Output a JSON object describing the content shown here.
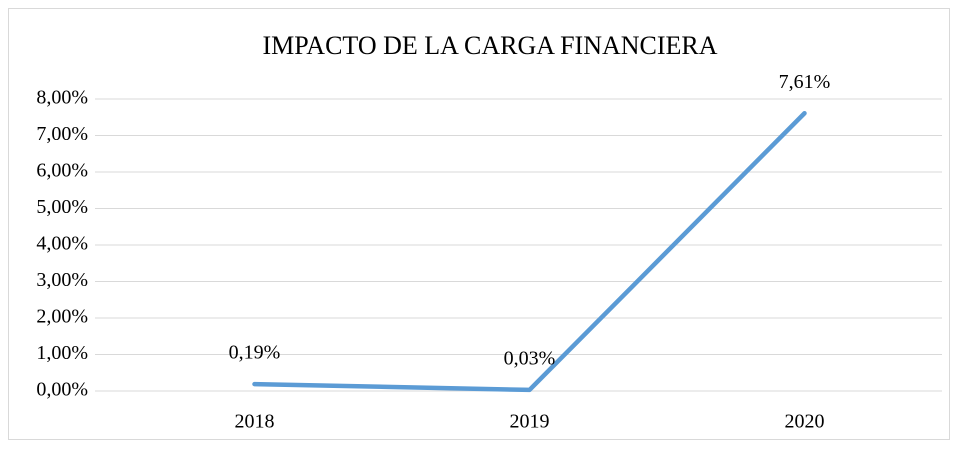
{
  "chart_data": {
    "type": "line",
    "title": "IMPACTO DE LA CARGA FINANCIERA",
    "categories": [
      "2018",
      "2019",
      "2020"
    ],
    "series": [
      {
        "color": "#5b9bd5",
        "values": [
          0.19,
          0.03,
          7.61
        ],
        "value_labels": [
          "0,19%",
          "0,03%",
          "7,61%"
        ]
      }
    ],
    "ylim": [
      0,
      8
    ],
    "yticks": [
      {
        "value": 0,
        "label": "0,00%"
      },
      {
        "value": 1,
        "label": "1,00%"
      },
      {
        "value": 2,
        "label": "2,00%"
      },
      {
        "value": 3,
        "label": "3,00%"
      },
      {
        "value": 4,
        "label": "4,00%"
      },
      {
        "value": 5,
        "label": "5,00%"
      },
      {
        "value": 6,
        "label": "6,00%"
      },
      {
        "value": 7,
        "label": "7,00%"
      },
      {
        "value": 8,
        "label": "8,00%"
      }
    ],
    "grid": true
  }
}
